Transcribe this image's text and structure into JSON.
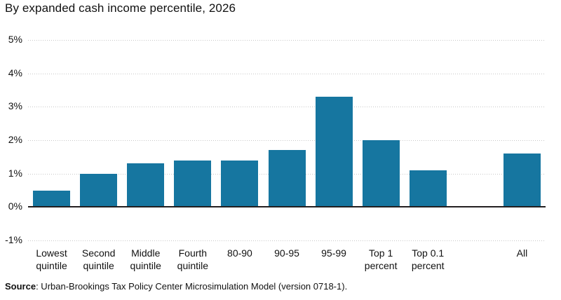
{
  "title": "By expanded cash income percentile, 2026",
  "source": {
    "label": "Source",
    "rest": ": Urban-Brookings Tax Policy Center Microsimulation Model (version 0718-1)."
  },
  "colors": {
    "bar": "#1676a0",
    "zero_line": "#231f20",
    "gridline": "#c7c7c7",
    "text": "#111111"
  },
  "chart_data": {
    "type": "bar",
    "title": "By expanded cash income percentile, 2026",
    "categories": [
      "Lowest quintile",
      "Second quintile",
      "Middle quintile",
      "Fourth quintile",
      "80-90",
      "90-95",
      "95-99",
      "Top 1 percent",
      "Top 0.1 percent",
      "",
      "All"
    ],
    "category_labels": [
      "Lowest\nquintile",
      "Second\nquintile",
      "Middle\nquintile",
      "Fourth\nquintile",
      "80-90",
      "90-95",
      "95-99",
      "Top 1\npercent",
      "Top 0.1\npercent",
      "",
      "All"
    ],
    "values": [
      0.5,
      1.0,
      1.3,
      1.4,
      1.4,
      1.7,
      3.3,
      2.0,
      1.1,
      null,
      1.6
    ],
    "unit": "%",
    "xlabel": "",
    "ylabel": "",
    "ylim": [
      -1,
      5
    ],
    "yticks": [
      {
        "value": 5,
        "label": "5%"
      },
      {
        "value": 4,
        "label": "4%"
      },
      {
        "value": 3,
        "label": "3%"
      },
      {
        "value": 2,
        "label": "2%"
      },
      {
        "value": 1,
        "label": "1%"
      },
      {
        "value": 0,
        "label": "0%"
      },
      {
        "value": -1,
        "label": "-1%"
      }
    ],
    "grid": "horizontal-dotted",
    "legend": "none"
  }
}
